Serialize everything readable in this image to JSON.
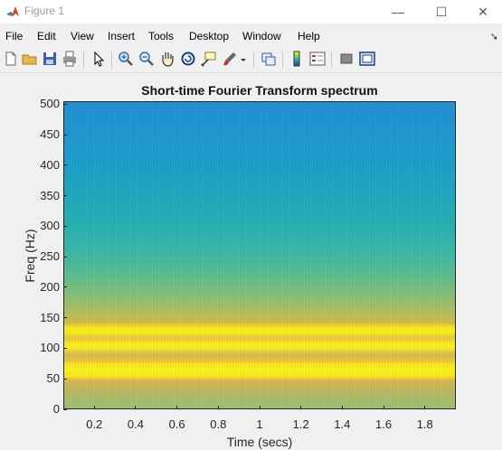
{
  "window": {
    "title": "Figure 1",
    "controls": {
      "minimize": "—",
      "maximize": "☐",
      "close": "✕"
    }
  },
  "menu": {
    "items": [
      "File",
      "Edit",
      "View",
      "Insert",
      "Tools",
      "Desktop",
      "Window",
      "Help"
    ],
    "dock_arrow": "➘"
  },
  "toolbar": {
    "buttons": [
      "new-figure-icon",
      "open-file-icon",
      "save-icon",
      "print-icon",
      "edit-plot-arrow-icon",
      "zoom-in-icon",
      "zoom-out-icon",
      "pan-hand-icon",
      "rotate-3d-icon",
      "data-cursor-icon",
      "brush-icon",
      "brush-dropdown-icon",
      "link-plot-icon",
      "insert-colorbar-icon",
      "insert-legend-icon",
      "hide-plot-tools-icon",
      "show-plot-tools-icon"
    ]
  },
  "chart_data": {
    "type": "heatmap",
    "title": "Short-time Fourier Transform spectrum",
    "xlabel": "Time (secs)",
    "ylabel": "Freq (Hz)",
    "xlim": [
      0.05,
      1.95
    ],
    "ylim": [
      0,
      505
    ],
    "xticks": [
      0.2,
      0.4,
      0.6,
      0.8,
      1,
      1.2,
      1.4,
      1.6,
      1.8
    ],
    "xtick_labels": [
      "0.2",
      "0.4",
      "0.6",
      "0.8",
      "1",
      "1.2",
      "1.4",
      "1.6",
      "1.8"
    ],
    "yticks": [
      0,
      50,
      100,
      150,
      200,
      250,
      300,
      350,
      400,
      450,
      500
    ],
    "ytick_labels": [
      "0",
      "50",
      "100",
      "150",
      "200",
      "250",
      "300",
      "350",
      "400",
      "450",
      "500"
    ],
    "colormap": "parula",
    "dominant_frequencies_hz": [
      65,
      125
    ],
    "colors": {
      "high": "#f9fb0e",
      "mid": "#3cb8a1",
      "low": "#1f8fd1"
    }
  }
}
